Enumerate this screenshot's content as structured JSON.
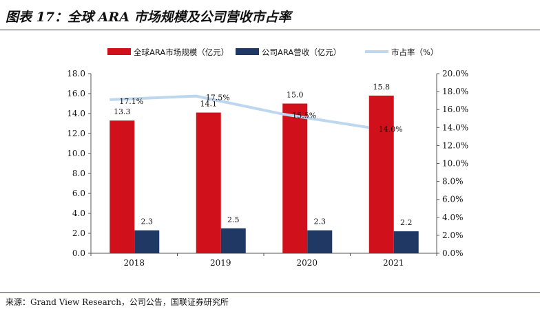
{
  "title": "图表 17：全球 ARA 市场规模及公司营收市占率",
  "source": "来源：Grand View Research，公司公告，国联证券研究所",
  "chart_data": {
    "type": "bar+line",
    "categories": [
      "2018",
      "2019",
      "2020",
      "2021"
    ],
    "series": [
      {
        "name": "全球ARA市场规模（亿元）",
        "type": "bar",
        "axis": "left",
        "color": "#d0101a",
        "values": [
          13.3,
          14.1,
          15.0,
          15.8
        ],
        "labels": [
          "13.3",
          "14.1",
          "15.0",
          "15.8"
        ]
      },
      {
        "name": "公司ARA营收（亿元）",
        "type": "bar",
        "axis": "left",
        "color": "#1f3864",
        "values": [
          2.3,
          2.5,
          2.3,
          2.2
        ],
        "labels": [
          "2.3",
          "2.5",
          "2.3",
          "2.2"
        ]
      },
      {
        "name": "市占率（%）",
        "type": "line",
        "axis": "right",
        "color": "#bdd7ee",
        "values": [
          17.1,
          17.5,
          15.5,
          14.0
        ],
        "labels": [
          "17.1%",
          "17.5%",
          "15.5%",
          "14.0%"
        ]
      }
    ],
    "y_left": {
      "min": 0,
      "max": 18,
      "step": 2,
      "ticks": [
        "0.0",
        "2.0",
        "4.0",
        "6.0",
        "8.0",
        "10.0",
        "12.0",
        "14.0",
        "16.0",
        "18.0"
      ]
    },
    "y_right": {
      "min": 0,
      "max": 20,
      "step": 2,
      "ticks": [
        "0.0%",
        "2.0%",
        "4.0%",
        "6.0%",
        "8.0%",
        "10.0%",
        "12.0%",
        "14.0%",
        "16.0%",
        "18.0%",
        "20.0%"
      ]
    },
    "legend_position": "top-center",
    "grid": false
  }
}
